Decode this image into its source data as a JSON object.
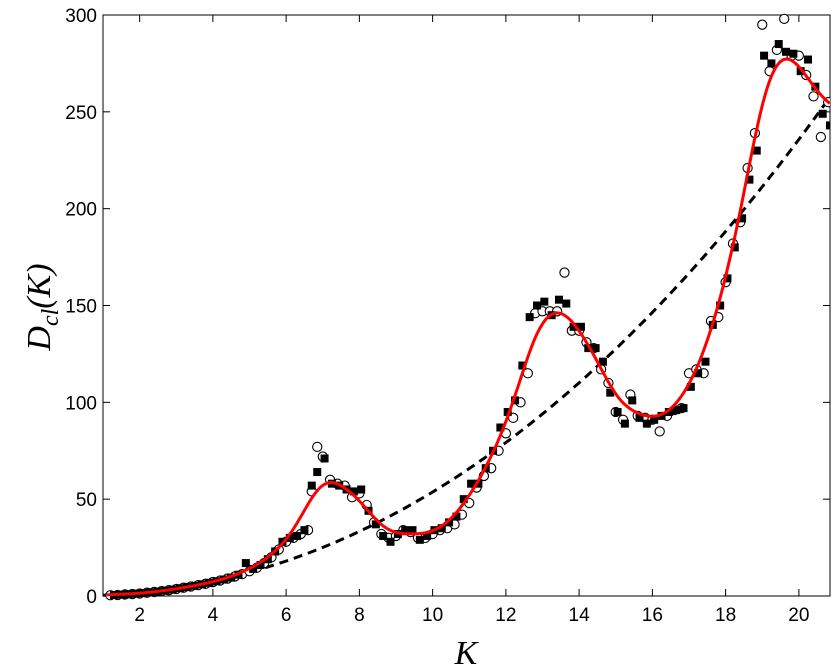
{
  "chart_data": {
    "type": "scatter",
    "title": "",
    "xlabel": "K",
    "ylabel_main": "D",
    "ylabel_sub": "cl",
    "ylabel_tail": "(K)",
    "xlim": [
      1.0,
      20.85
    ],
    "ylim": [
      0,
      300
    ],
    "x_ticks": [
      2,
      4,
      6,
      8,
      10,
      12,
      14,
      16,
      18,
      20
    ],
    "y_ticks": [
      0,
      50,
      100,
      150,
      200,
      250,
      300
    ],
    "grid": false,
    "legend": "none",
    "colors": {
      "fit": "#ff0000",
      "trend": "#000000",
      "markers": "#000000"
    },
    "series": [
      {
        "marker": "open-circle",
        "points": [
          [
            1.2,
            0.4
          ],
          [
            1.4,
            0.5
          ],
          [
            1.6,
            0.8
          ],
          [
            1.8,
            1.0
          ],
          [
            2.0,
            1.3
          ],
          [
            2.2,
            1.7
          ],
          [
            2.4,
            2.1
          ],
          [
            2.6,
            2.5
          ],
          [
            2.8,
            3.0
          ],
          [
            3.0,
            3.6
          ],
          [
            3.2,
            4.3
          ],
          [
            3.4,
            4.9
          ],
          [
            3.6,
            5.6
          ],
          [
            3.8,
            6.3
          ],
          [
            4.0,
            7.2
          ],
          [
            4.2,
            8.0
          ],
          [
            4.4,
            9.0
          ],
          [
            4.6,
            10.1
          ],
          [
            4.8,
            11.3
          ],
          [
            5.0,
            12.8
          ],
          [
            5.2,
            14.6
          ],
          [
            5.4,
            17
          ],
          [
            5.6,
            20
          ],
          [
            5.8,
            24
          ],
          [
            6.0,
            28
          ],
          [
            6.2,
            30
          ],
          [
            6.4,
            32
          ],
          [
            6.6,
            34
          ],
          [
            6.7,
            54
          ],
          [
            6.85,
            77
          ],
          [
            7.0,
            72
          ],
          [
            7.2,
            60
          ],
          [
            7.4,
            58
          ],
          [
            7.6,
            57
          ],
          [
            7.8,
            51
          ],
          [
            8.0,
            53
          ],
          [
            8.2,
            47
          ],
          [
            8.4,
            38
          ],
          [
            8.6,
            32
          ],
          [
            8.8,
            30
          ],
          [
            9.0,
            31
          ],
          [
            9.2,
            34
          ],
          [
            9.4,
            33
          ],
          [
            9.6,
            30
          ],
          [
            9.8,
            30
          ],
          [
            10.0,
            32
          ],
          [
            10.2,
            34
          ],
          [
            10.4,
            35
          ],
          [
            10.6,
            37
          ],
          [
            10.8,
            42
          ],
          [
            11.0,
            48
          ],
          [
            11.2,
            56
          ],
          [
            11.4,
            62
          ],
          [
            11.6,
            66
          ],
          [
            11.8,
            75
          ],
          [
            12.0,
            84
          ],
          [
            12.2,
            92
          ],
          [
            12.4,
            100
          ],
          [
            12.6,
            115
          ],
          [
            12.8,
            146
          ],
          [
            13.0,
            147
          ],
          [
            13.2,
            147
          ],
          [
            13.4,
            147
          ],
          [
            13.6,
            167
          ],
          [
            13.8,
            137
          ],
          [
            14.0,
            137
          ],
          [
            14.2,
            131
          ],
          [
            14.4,
            128
          ],
          [
            14.6,
            117
          ],
          [
            14.8,
            110
          ],
          [
            15.0,
            95
          ],
          [
            15.2,
            91
          ],
          [
            15.4,
            104
          ],
          [
            15.6,
            93
          ],
          [
            15.8,
            92
          ],
          [
            16.0,
            91
          ],
          [
            16.2,
            85
          ],
          [
            16.4,
            93
          ],
          [
            16.6,
            96
          ],
          [
            16.8,
            97
          ],
          [
            17.0,
            115
          ],
          [
            17.2,
            117
          ],
          [
            17.4,
            115
          ],
          [
            17.6,
            142
          ],
          [
            17.8,
            144
          ],
          [
            18.0,
            162
          ],
          [
            18.2,
            182
          ],
          [
            18.4,
            193
          ],
          [
            18.6,
            221
          ],
          [
            18.8,
            239
          ],
          [
            19.0,
            295
          ],
          [
            19.2,
            271
          ],
          [
            19.4,
            282
          ],
          [
            19.6,
            298
          ],
          [
            19.8,
            279
          ],
          [
            20.0,
            279
          ],
          [
            20.2,
            269
          ],
          [
            20.4,
            258
          ],
          [
            20.6,
            237
          ],
          [
            20.8,
            255
          ]
        ]
      },
      {
        "marker": "filled-square",
        "points": [
          [
            1.3,
            0.5
          ],
          [
            1.5,
            0.7
          ],
          [
            1.7,
            0.9
          ],
          [
            1.9,
            1.2
          ],
          [
            2.1,
            1.5
          ],
          [
            2.3,
            1.9
          ],
          [
            2.5,
            2.3
          ],
          [
            2.7,
            2.8
          ],
          [
            2.9,
            3.3
          ],
          [
            3.1,
            4.0
          ],
          [
            3.3,
            4.6
          ],
          [
            3.5,
            5.3
          ],
          [
            3.7,
            6.0
          ],
          [
            3.9,
            6.8
          ],
          [
            4.1,
            7.6
          ],
          [
            4.3,
            8.5
          ],
          [
            4.5,
            9.5
          ],
          [
            4.7,
            11
          ],
          [
            4.9,
            17
          ],
          [
            5.1,
            14
          ],
          [
            5.3,
            16
          ],
          [
            5.5,
            19
          ],
          [
            5.7,
            23
          ],
          [
            5.9,
            28
          ],
          [
            6.1,
            30
          ],
          [
            6.3,
            31
          ],
          [
            6.5,
            34
          ],
          [
            6.7,
            57
          ],
          [
            6.85,
            64
          ],
          [
            7.05,
            71
          ],
          [
            7.25,
            58
          ],
          [
            7.45,
            57
          ],
          [
            7.65,
            55
          ],
          [
            7.85,
            54
          ],
          [
            8.05,
            55
          ],
          [
            8.25,
            44
          ],
          [
            8.45,
            37
          ],
          [
            8.65,
            31
          ],
          [
            8.85,
            28
          ],
          [
            9.05,
            32
          ],
          [
            9.25,
            34
          ],
          [
            9.45,
            34
          ],
          [
            9.65,
            29
          ],
          [
            9.85,
            31
          ],
          [
            10.05,
            34
          ],
          [
            10.25,
            35
          ],
          [
            10.45,
            38
          ],
          [
            10.65,
            41
          ],
          [
            10.85,
            50
          ],
          [
            11.05,
            58
          ],
          [
            11.25,
            58
          ],
          [
            11.45,
            66
          ],
          [
            11.65,
            75
          ],
          [
            11.85,
            87
          ],
          [
            12.05,
            95
          ],
          [
            12.25,
            101
          ],
          [
            12.45,
            119
          ],
          [
            12.65,
            144
          ],
          [
            12.85,
            150
          ],
          [
            13.05,
            152
          ],
          [
            13.25,
            145
          ],
          [
            13.45,
            153
          ],
          [
            13.65,
            151
          ],
          [
            13.85,
            139
          ],
          [
            14.05,
            139
          ],
          [
            14.25,
            128
          ],
          [
            14.45,
            128
          ],
          [
            14.65,
            121
          ],
          [
            14.85,
            105
          ],
          [
            15.05,
            95
          ],
          [
            15.25,
            89
          ],
          [
            15.45,
            101
          ],
          [
            15.65,
            92
          ],
          [
            15.85,
            89
          ],
          [
            16.05,
            91
          ],
          [
            16.25,
            93
          ],
          [
            16.45,
            95
          ],
          [
            16.65,
            96
          ],
          [
            16.85,
            97
          ],
          [
            17.05,
            108
          ],
          [
            17.25,
            115
          ],
          [
            17.45,
            121
          ],
          [
            17.65,
            140
          ],
          [
            17.85,
            150
          ],
          [
            18.05,
            164
          ],
          [
            18.25,
            180
          ],
          [
            18.45,
            195
          ],
          [
            18.65,
            215
          ],
          [
            18.85,
            230
          ],
          [
            19.05,
            279
          ],
          [
            19.25,
            275
          ],
          [
            19.45,
            285
          ],
          [
            19.65,
            281
          ],
          [
            19.85,
            280
          ],
          [
            20.05,
            271
          ],
          [
            20.25,
            277
          ],
          [
            20.45,
            263
          ],
          [
            20.65,
            249
          ],
          [
            20.85,
            243
          ]
        ]
      }
    ]
  }
}
